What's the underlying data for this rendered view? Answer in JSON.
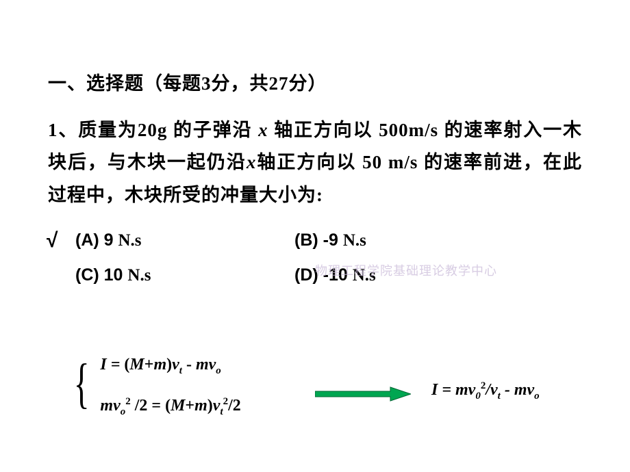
{
  "section_title": "一、选择题（每题3分，共27分）",
  "question": {
    "prefix": "1、质量为20g 的子弹沿 ",
    "var1": "x",
    "mid1": " 轴正方向以 500m/s 的速率射入一木块后，与木块一起仍沿",
    "var2": "x",
    "mid2": "轴正方向以 50 m/s 的速率前进，在此过程中，木块所受的冲量大小为:"
  },
  "options": {
    "a": {
      "label": "(A) 9 ",
      "unit": "N.s",
      "correct": true
    },
    "b": {
      "label": "(B) -9 ",
      "unit": "N.s"
    },
    "c": {
      "label": "(C) 10 ",
      "unit": "N.s"
    },
    "d": {
      "label": "(D) -10 ",
      "unit": "N.s"
    }
  },
  "checkmark": "√",
  "watermark": "物理工程学院基础理论教学中心",
  "equations": {
    "eq1_html": "I = <span class='up'>(</span>M<span class='up'>+</span>m<span class='up'>)</span>v<sub>t</sub> <span class='up'>-</span> mv<sub>o</sub>",
    "eq2_html": "mv<sub>o</sub><sup>2</sup> <span class='up'>/2 = (</span>M<span class='up'>+</span>m<span class='up'>)</span>v<sub>t</sub><sup>2</sup><span class='up'>/2</span>",
    "result_html": "I = mv<sub><span class='up'>0</span></sub><sup>2</sup><span class='up'>/</span>v<sub>t</sub> <span class='up'>-</span> mv<sub>o</sub>"
  },
  "arrow": {
    "fill": "#00a651",
    "stroke": "#006633",
    "width": 140,
    "height": 24
  },
  "colors": {
    "text": "#000000",
    "background": "#ffffff",
    "watermark": "#c8b8d8"
  }
}
